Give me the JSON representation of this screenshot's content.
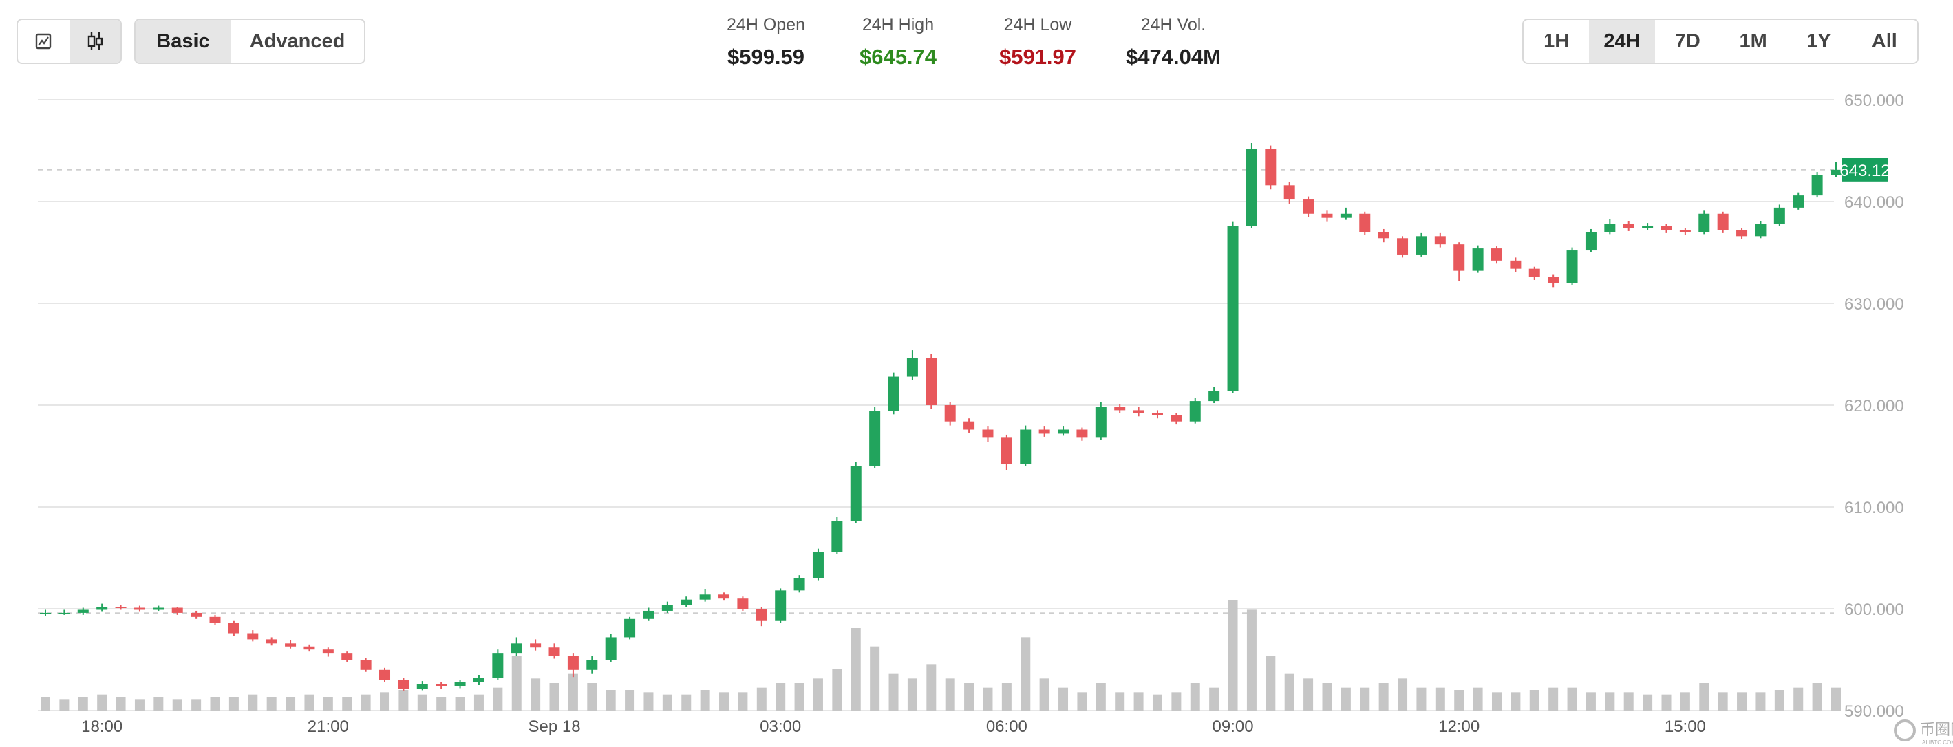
{
  "toolbar": {
    "chart_types": [
      {
        "icon": "line-chart-icon",
        "active": false
      },
      {
        "icon": "candlestick-icon",
        "active": true
      }
    ],
    "modes": [
      {
        "label": "Basic",
        "active": true
      },
      {
        "label": "Advanced",
        "active": false
      }
    ],
    "ranges": [
      {
        "label": "1H",
        "active": false
      },
      {
        "label": "24H",
        "active": true
      },
      {
        "label": "7D",
        "active": false
      },
      {
        "label": "1M",
        "active": false
      },
      {
        "label": "1Y",
        "active": false
      },
      {
        "label": "All",
        "active": false
      }
    ]
  },
  "stats": [
    {
      "label": "24H Open",
      "value": "$599.59",
      "color": "#222222"
    },
    {
      "label": "24H High",
      "value": "$645.74",
      "color": "#2e8b1f"
    },
    {
      "label": "24H Low",
      "value": "$591.97",
      "color": "#b3141c"
    },
    {
      "label": "24H Vol.",
      "value": "$474.04M",
      "color": "#222222"
    }
  ],
  "colors": {
    "up": "#22a45d",
    "down": "#e8585c",
    "volume": "#c6c6c6",
    "grid": "#e6e6e6",
    "tag": "#17a05d"
  },
  "watermark": {
    "name": "币圈网",
    "domain": "ALIBTC.COM"
  },
  "chart_data": {
    "type": "candlestick",
    "interval": "15m",
    "ylim": [
      590,
      650
    ],
    "yticks": [
      "650.000",
      "640.000",
      "630.000",
      "620.000",
      "610.000",
      "600.000",
      "590.000"
    ],
    "ytick_values": [
      650,
      640,
      630,
      620,
      610,
      600,
      590
    ],
    "xticks": [
      {
        "label": "18:00",
        "candle": 3
      },
      {
        "label": "21:00",
        "candle": 15
      },
      {
        "label": "Sep 18",
        "candle": 27
      },
      {
        "label": "03:00",
        "candle": 39
      },
      {
        "label": "06:00",
        "candle": 51
      },
      {
        "label": "09:00",
        "candle": 63
      },
      {
        "label": "12:00",
        "candle": 75
      },
      {
        "label": "15:00",
        "candle": 87
      }
    ],
    "current_price": 643.12,
    "current_price_label": "643.12",
    "open_reference": 599.59,
    "ohlc": [
      [
        599.59,
        599.9,
        599.3,
        599.6
      ],
      [
        599.6,
        599.9,
        599.4,
        599.6
      ],
      [
        599.6,
        600.1,
        599.4,
        599.9
      ],
      [
        599.9,
        600.5,
        599.7,
        600.2
      ],
      [
        600.2,
        600.4,
        599.9,
        600.1
      ],
      [
        600.1,
        600.3,
        599.7,
        599.9
      ],
      [
        599.9,
        600.3,
        599.8,
        600.1
      ],
      [
        600.1,
        600.2,
        599.4,
        599.6
      ],
      [
        599.6,
        599.8,
        599.0,
        599.2
      ],
      [
        599.2,
        599.4,
        598.4,
        598.6
      ],
      [
        598.6,
        598.8,
        597.3,
        597.6
      ],
      [
        597.6,
        597.9,
        596.8,
        597.0
      ],
      [
        597.0,
        597.2,
        596.4,
        596.6
      ],
      [
        596.6,
        596.9,
        596.1,
        596.3
      ],
      [
        596.3,
        596.5,
        595.8,
        596.0
      ],
      [
        596.0,
        596.2,
        595.3,
        595.6
      ],
      [
        595.6,
        595.8,
        594.8,
        595.0
      ],
      [
        595.0,
        595.2,
        593.8,
        594.0
      ],
      [
        594.0,
        594.2,
        592.8,
        593.0
      ],
      [
        593.0,
        593.2,
        591.97,
        592.1
      ],
      [
        592.1,
        592.9,
        592.0,
        592.6
      ],
      [
        592.6,
        592.8,
        592.1,
        592.4
      ],
      [
        592.4,
        593.0,
        592.2,
        592.8
      ],
      [
        592.8,
        593.5,
        592.5,
        593.2
      ],
      [
        593.2,
        596.0,
        593.0,
        595.6
      ],
      [
        595.6,
        597.2,
        595.4,
        596.6
      ],
      [
        596.6,
        597.0,
        595.9,
        596.2
      ],
      [
        596.2,
        596.6,
        595.1,
        595.4
      ],
      [
        595.4,
        595.6,
        593.3,
        594.0
      ],
      [
        594.0,
        595.4,
        593.6,
        595.0
      ],
      [
        595.0,
        597.5,
        594.8,
        597.2
      ],
      [
        597.2,
        599.2,
        597.0,
        599.0
      ],
      [
        599.0,
        600.1,
        598.8,
        599.8
      ],
      [
        599.8,
        600.7,
        599.6,
        600.4
      ],
      [
        600.4,
        601.2,
        600.2,
        600.9
      ],
      [
        600.9,
        601.9,
        600.7,
        601.4
      ],
      [
        601.4,
        601.6,
        600.8,
        601.0
      ],
      [
        601.0,
        601.2,
        599.8,
        600.0
      ],
      [
        600.0,
        600.2,
        598.3,
        598.8
      ],
      [
        598.8,
        602.0,
        598.6,
        601.8
      ],
      [
        601.8,
        603.3,
        601.6,
        603.0
      ],
      [
        603.0,
        605.9,
        602.8,
        605.6
      ],
      [
        605.6,
        609.0,
        605.4,
        608.6
      ],
      [
        608.6,
        614.4,
        608.4,
        614.0
      ],
      [
        614.0,
        619.8,
        613.8,
        619.4
      ],
      [
        619.4,
        623.2,
        619.1,
        622.8
      ],
      [
        622.8,
        625.4,
        622.5,
        624.6
      ],
      [
        624.6,
        625.0,
        619.6,
        620.0
      ],
      [
        620.0,
        620.3,
        618.0,
        618.4
      ],
      [
        618.4,
        618.7,
        617.3,
        617.6
      ],
      [
        617.6,
        617.9,
        616.4,
        616.8
      ],
      [
        616.8,
        617.1,
        613.6,
        614.2
      ],
      [
        614.2,
        618.0,
        614.0,
        617.6
      ],
      [
        617.6,
        617.9,
        616.9,
        617.2
      ],
      [
        617.2,
        617.9,
        617.0,
        617.6
      ],
      [
        617.6,
        617.8,
        616.5,
        616.8
      ],
      [
        616.8,
        620.3,
        616.6,
        619.8
      ],
      [
        619.8,
        620.1,
        619.2,
        619.5
      ],
      [
        619.5,
        619.8,
        618.9,
        619.2
      ],
      [
        619.2,
        619.5,
        618.7,
        619.0
      ],
      [
        619.0,
        619.2,
        618.1,
        618.4
      ],
      [
        618.4,
        620.7,
        618.2,
        620.4
      ],
      [
        620.4,
        621.8,
        620.2,
        621.4
      ],
      [
        621.4,
        638.0,
        621.2,
        637.6
      ],
      [
        637.6,
        645.74,
        637.4,
        645.2
      ],
      [
        645.2,
        645.5,
        641.2,
        641.6
      ],
      [
        641.6,
        641.9,
        639.8,
        640.2
      ],
      [
        640.2,
        640.5,
        638.5,
        638.8
      ],
      [
        638.8,
        639.1,
        638.0,
        638.4
      ],
      [
        638.4,
        639.4,
        638.2,
        638.8
      ],
      [
        638.8,
        639.0,
        636.7,
        637.0
      ],
      [
        637.0,
        637.3,
        636.0,
        636.4
      ],
      [
        636.4,
        636.6,
        634.5,
        634.8
      ],
      [
        634.8,
        636.9,
        634.6,
        636.6
      ],
      [
        636.6,
        636.9,
        635.5,
        635.8
      ],
      [
        635.8,
        636.0,
        632.2,
        633.2
      ],
      [
        633.2,
        635.7,
        633.0,
        635.4
      ],
      [
        635.4,
        635.6,
        633.9,
        634.2
      ],
      [
        634.2,
        634.5,
        633.1,
        633.4
      ],
      [
        633.4,
        633.6,
        632.3,
        632.6
      ],
      [
        632.6,
        632.8,
        631.6,
        632.0
      ],
      [
        632.0,
        635.5,
        631.8,
        635.2
      ],
      [
        635.2,
        637.3,
        635.0,
        637.0
      ],
      [
        637.0,
        638.3,
        636.8,
        637.8
      ],
      [
        637.8,
        638.1,
        637.1,
        637.4
      ],
      [
        637.4,
        637.9,
        637.2,
        637.6
      ],
      [
        637.6,
        637.8,
        636.9,
        637.2
      ],
      [
        637.2,
        637.4,
        636.7,
        637.0
      ],
      [
        637.0,
        639.1,
        636.8,
        638.8
      ],
      [
        638.8,
        639.0,
        636.9,
        637.2
      ],
      [
        637.2,
        637.4,
        636.3,
        636.6
      ],
      [
        636.6,
        638.1,
        636.4,
        637.8
      ],
      [
        637.8,
        639.7,
        637.6,
        639.4
      ],
      [
        639.4,
        640.9,
        639.2,
        640.6
      ],
      [
        640.6,
        642.9,
        640.4,
        642.6
      ],
      [
        642.6,
        643.9,
        642.4,
        643.12
      ]
    ],
    "volume": [
      3,
      2.5,
      3,
      3.5,
      3,
      2.5,
      3,
      2.5,
      2.5,
      3,
      3,
      3.5,
      3,
      3,
      3.5,
      3,
      3,
      3.5,
      4,
      4.5,
      3.5,
      3,
      3,
      3.5,
      5,
      12,
      7,
      6,
      8,
      6,
      4.5,
      4.5,
      4,
      3.5,
      3.5,
      4.5,
      4,
      4,
      5,
      6,
      6,
      7,
      9,
      18,
      14,
      8,
      7,
      10,
      7,
      6,
      5,
      6,
      16,
      7,
      5,
      4,
      6,
      4,
      4,
      3.5,
      4,
      6,
      5,
      24,
      22,
      12,
      8,
      7,
      6,
      5,
      5,
      6,
      7,
      5,
      5,
      4.5,
      5,
      4,
      4,
      4.5,
      5,
      5,
      4,
      4,
      4,
      3.5,
      3.5,
      4,
      6,
      4,
      4,
      4,
      4.5,
      5,
      6,
      5
    ]
  }
}
